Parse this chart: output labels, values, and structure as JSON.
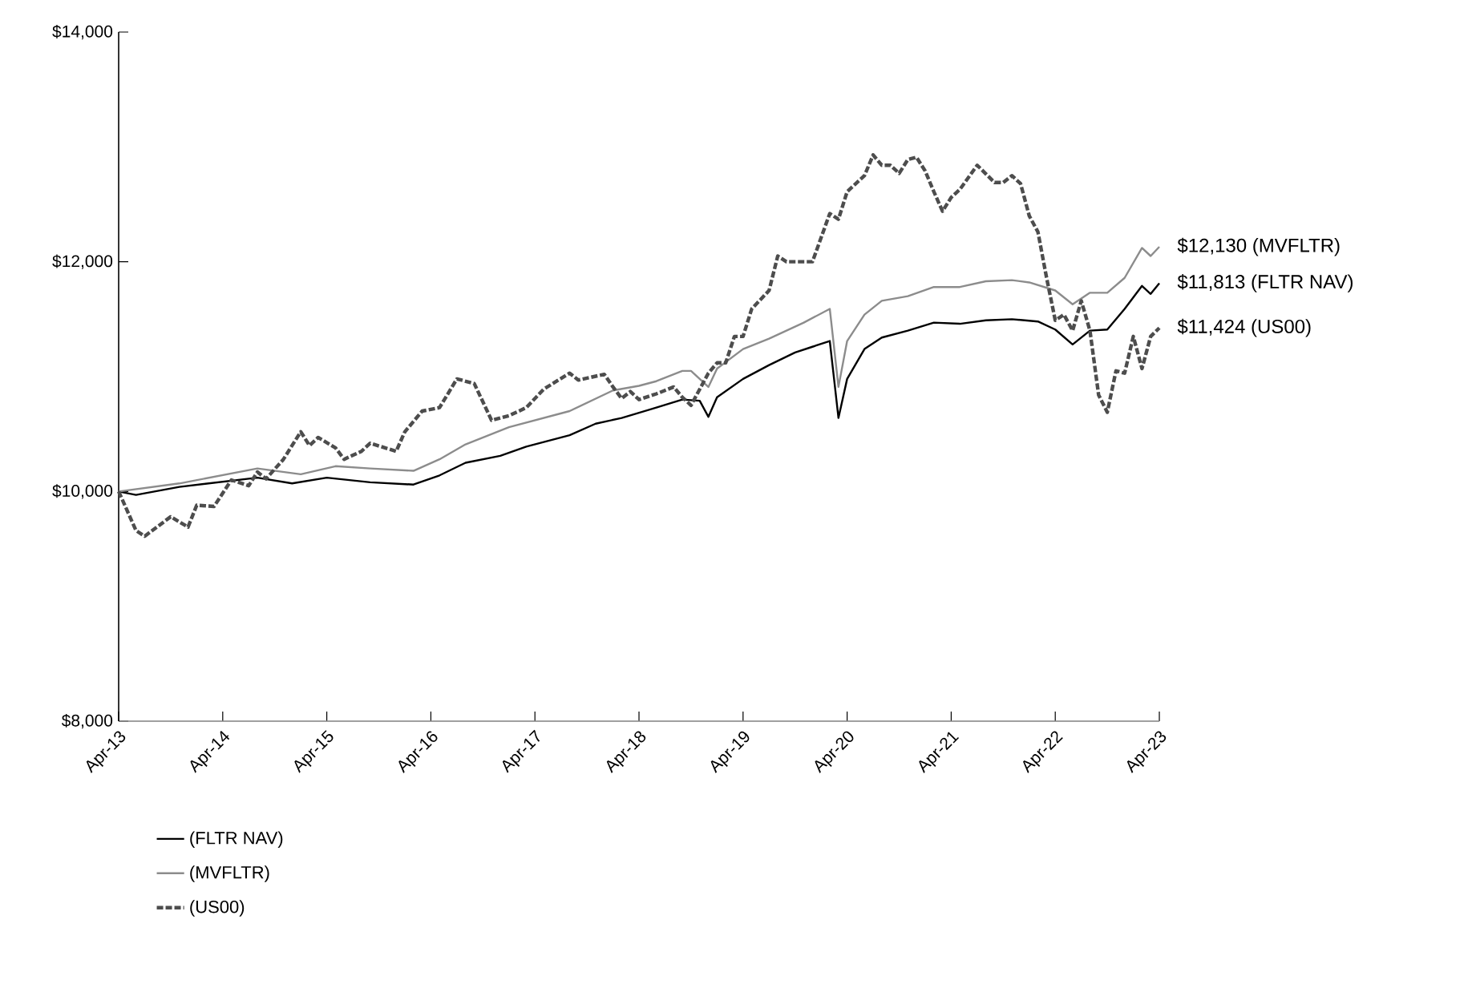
{
  "chart_data": {
    "type": "line",
    "xlim": [
      "2013-04",
      "2023-04"
    ],
    "xticks": [
      {
        "value": "2013-04",
        "label": "Apr-13"
      },
      {
        "value": "2014-04",
        "label": "Apr-14"
      },
      {
        "value": "2015-04",
        "label": "Apr-15"
      },
      {
        "value": "2016-04",
        "label": "Apr-16"
      },
      {
        "value": "2017-04",
        "label": "Apr-17"
      },
      {
        "value": "2018-04",
        "label": "Apr-18"
      },
      {
        "value": "2019-04",
        "label": "Apr-19"
      },
      {
        "value": "2020-04",
        "label": "Apr-20"
      },
      {
        "value": "2021-04",
        "label": "Apr-21"
      },
      {
        "value": "2022-04",
        "label": "Apr-22"
      },
      {
        "value": "2023-04",
        "label": "Apr-23"
      }
    ],
    "ylim": [
      8000,
      14000
    ],
    "yticks": [
      {
        "value": 8000,
        "label": "$8,000"
      },
      {
        "value": 10000,
        "label": "$10,000"
      },
      {
        "value": 12000,
        "label": "$12,000"
      },
      {
        "value": 14000,
        "label": "$14,000"
      }
    ],
    "grid": false,
    "legend": "bottom",
    "series": [
      {
        "name": "(FLTR NAV)",
        "color": "#000000",
        "line_style": "solid",
        "x": [
          "2013-04",
          "2013-06",
          "2013-11",
          "2014-08",
          "2014-12",
          "2015-04",
          "2015-09",
          "2016-02",
          "2016-05",
          "2016-08",
          "2016-12",
          "2017-03",
          "2017-08",
          "2017-11",
          "2018-02",
          "2018-06",
          "2018-09",
          "2018-11",
          "2018-12",
          "2019-01",
          "2019-04",
          "2019-07",
          "2019-10",
          "2019-12",
          "2020-02",
          "2020-03",
          "2020-04",
          "2020-06",
          "2020-08",
          "2020-11",
          "2021-02",
          "2021-05",
          "2021-08",
          "2021-11",
          "2022-02",
          "2022-04",
          "2022-06",
          "2022-08",
          "2022-10",
          "2022-12",
          "2023-02",
          "2023-03",
          "2023-04"
        ],
        "values": [
          10000,
          9970,
          10040,
          10120,
          10070,
          10120,
          10080,
          10060,
          10140,
          10250,
          10310,
          10390,
          10490,
          10590,
          10640,
          10730,
          10800,
          10790,
          10650,
          10820,
          10980,
          11100,
          11210,
          11260,
          11310,
          10640,
          10980,
          11240,
          11340,
          11400,
          11470,
          11460,
          11490,
          11500,
          11480,
          11410,
          11280,
          11400,
          11410,
          11590,
          11790,
          11720,
          11813
        ]
      },
      {
        "name": "(MVFLTR)",
        "color": "#8c8c8c",
        "line_style": "solid",
        "x": [
          "2013-04",
          "2013-11",
          "2014-08",
          "2015-01",
          "2015-05",
          "2015-09",
          "2016-02",
          "2016-05",
          "2016-08",
          "2017-01",
          "2017-08",
          "2018-01",
          "2018-04",
          "2018-06",
          "2018-09",
          "2018-10",
          "2018-12",
          "2019-01",
          "2019-04",
          "2019-07",
          "2019-11",
          "2020-02",
          "2020-03",
          "2020-04",
          "2020-06",
          "2020-08",
          "2020-11",
          "2021-02",
          "2021-05",
          "2021-08",
          "2021-11",
          "2022-01",
          "2022-04",
          "2022-06",
          "2022-08",
          "2022-10",
          "2022-12",
          "2023-02",
          "2023-03",
          "2023-04"
        ],
        "values": [
          10000,
          10070,
          10200,
          10150,
          10220,
          10200,
          10180,
          10280,
          10410,
          10560,
          10700,
          10880,
          10920,
          10960,
          11050,
          11050,
          10910,
          11070,
          11240,
          11330,
          11470,
          11590,
          10910,
          11310,
          11540,
          11660,
          11700,
          11780,
          11780,
          11830,
          11840,
          11820,
          11750,
          11630,
          11730,
          11730,
          11860,
          12120,
          12050,
          12130
        ]
      },
      {
        "name": "(US00)",
        "color": "#4d4d4d",
        "line_style": "dashed",
        "x": [
          "2013-04",
          "2013-06",
          "2013-07",
          "2013-10",
          "2013-12",
          "2014-01",
          "2014-03",
          "2014-05",
          "2014-07",
          "2014-08",
          "2014-09",
          "2014-11",
          "2015-01",
          "2015-02",
          "2015-03",
          "2015-05",
          "2015-06",
          "2015-08",
          "2015-09",
          "2015-12",
          "2016-01",
          "2016-03",
          "2016-05",
          "2016-07",
          "2016-09",
          "2016-11",
          "2017-01",
          "2017-03",
          "2017-05",
          "2017-08",
          "2017-09",
          "2017-12",
          "2018-01",
          "2018-02",
          "2018-03",
          "2018-04",
          "2018-06",
          "2018-08",
          "2018-09",
          "2018-10",
          "2018-12",
          "2019-01",
          "2019-02",
          "2019-03",
          "2019-04",
          "2019-05",
          "2019-07",
          "2019-08",
          "2019-09",
          "2019-12",
          "2020-02",
          "2020-03",
          "2020-04",
          "2020-06",
          "2020-07",
          "2020-08",
          "2020-09",
          "2020-10",
          "2020-11",
          "2020-12",
          "2021-01",
          "2021-02",
          "2021-03",
          "2021-04",
          "2021-05",
          "2021-07",
          "2021-09",
          "2021-10",
          "2021-11",
          "2021-12",
          "2022-01",
          "2022-02",
          "2022-03",
          "2022-04",
          "2022-05",
          "2022-06",
          "2022-07",
          "2022-08",
          "2022-09",
          "2022-10",
          "2022-11",
          "2022-12",
          "2023-01",
          "2023-02",
          "2023-03",
          "2023-04"
        ],
        "values": [
          10000,
          9660,
          9610,
          9780,
          9690,
          9880,
          9870,
          10100,
          10050,
          10170,
          10110,
          10280,
          10520,
          10400,
          10470,
          10380,
          10280,
          10350,
          10420,
          10350,
          10520,
          10700,
          10730,
          10980,
          10940,
          10620,
          10660,
          10730,
          10890,
          11030,
          10970,
          11020,
          10910,
          10810,
          10870,
          10800,
          10850,
          10910,
          10820,
          10750,
          11030,
          11120,
          11120,
          11350,
          11350,
          11590,
          11750,
          12050,
          12000,
          12000,
          12420,
          12370,
          12610,
          12750,
          12930,
          12840,
          12840,
          12770,
          12890,
          12910,
          12790,
          12610,
          12440,
          12560,
          12630,
          12840,
          12690,
          12690,
          12750,
          12680,
          12400,
          12260,
          11860,
          11490,
          11540,
          11400,
          11660,
          11400,
          10840,
          10690,
          11050,
          11030,
          11350,
          11070,
          11350,
          11424
        ]
      }
    ],
    "annotations": [
      {
        "text": "$12,130 (MVFLTR)",
        "x": "2023-04",
        "y": 12130
      },
      {
        "text": "$11,813 (FLTR NAV)",
        "x": "2023-04",
        "y": 11813
      },
      {
        "text": "$11,424 (US00)",
        "x": "2023-04",
        "y": 11424
      }
    ]
  }
}
